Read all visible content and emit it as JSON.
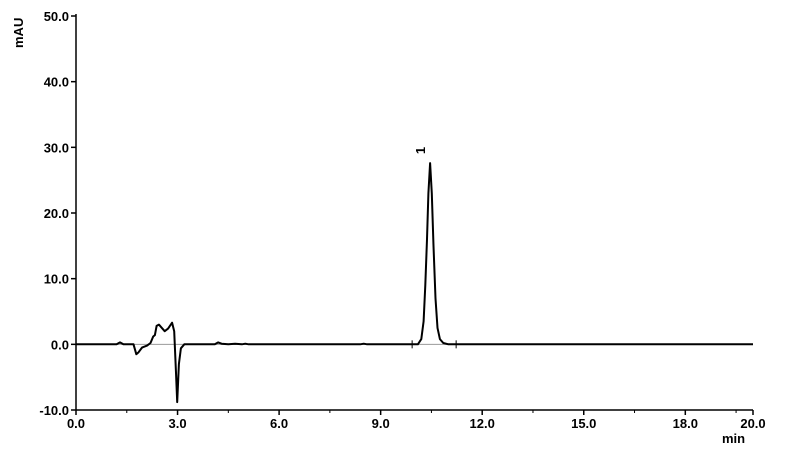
{
  "chart_data": {
    "type": "line",
    "title": "",
    "xlabel": "min",
    "ylabel": "mAU",
    "xlim": [
      0,
      20
    ],
    "ylim": [
      -10,
      50
    ],
    "x_ticks": [
      0,
      3,
      6,
      9,
      12,
      15,
      18,
      20
    ],
    "x_tick_labels": [
      "0.0",
      "3.0",
      "6.0",
      "9.0",
      "12.0",
      "15.0",
      "18.0",
      "20.0"
    ],
    "y_ticks": [
      -10,
      0,
      10,
      20,
      30,
      40,
      50
    ],
    "y_tick_labels": [
      "-10.0",
      "0.0",
      "10.0",
      "20.0",
      "30.0",
      "40.0",
      "50.0"
    ],
    "grid": false,
    "line_color": "#000000",
    "series": [
      {
        "points": [
          [
            0,
            0
          ],
          [
            1.2,
            0
          ],
          [
            1.3,
            0.3
          ],
          [
            1.4,
            0
          ],
          [
            1.7,
            0
          ],
          [
            1.78,
            -1.5
          ],
          [
            1.85,
            -1.2
          ],
          [
            1.95,
            -0.5
          ],
          [
            2.1,
            -0.2
          ],
          [
            2.2,
            0.2
          ],
          [
            2.28,
            1.2
          ],
          [
            2.33,
            1.4
          ],
          [
            2.38,
            2.8
          ],
          [
            2.45,
            3.0
          ],
          [
            2.52,
            2.6
          ],
          [
            2.62,
            2.0
          ],
          [
            2.72,
            2.4
          ],
          [
            2.84,
            3.3
          ],
          [
            2.9,
            2.0
          ],
          [
            2.95,
            -4
          ],
          [
            2.99,
            -8.8
          ],
          [
            3.04,
            -3
          ],
          [
            3.1,
            -0.6
          ],
          [
            3.2,
            0
          ],
          [
            4.1,
            0
          ],
          [
            4.2,
            0.3
          ],
          [
            4.3,
            0.1
          ],
          [
            4.5,
            0
          ],
          [
            4.7,
            0.1
          ],
          [
            4.9,
            0
          ],
          [
            5.0,
            0.1
          ],
          [
            5.1,
            0
          ],
          [
            8.4,
            0
          ],
          [
            8.5,
            0.1
          ],
          [
            8.6,
            0
          ],
          [
            10.1,
            0
          ],
          [
            10.2,
            0.8
          ],
          [
            10.27,
            3.5
          ],
          [
            10.32,
            9
          ],
          [
            10.37,
            16
          ],
          [
            10.41,
            23
          ],
          [
            10.46,
            27.6
          ],
          [
            10.51,
            23
          ],
          [
            10.56,
            15
          ],
          [
            10.62,
            7
          ],
          [
            10.68,
            2.5
          ],
          [
            10.75,
            0.8
          ],
          [
            10.85,
            0.2
          ],
          [
            11.0,
            0
          ],
          [
            20,
            0
          ]
        ]
      }
    ],
    "annotations": [
      {
        "type": "peak-label",
        "text": "1",
        "x": 10.46,
        "y": 27.6
      },
      {
        "type": "baseline-marker",
        "x": 9.93,
        "y": 0
      },
      {
        "type": "baseline-marker",
        "x": 11.23,
        "y": 0
      }
    ]
  }
}
